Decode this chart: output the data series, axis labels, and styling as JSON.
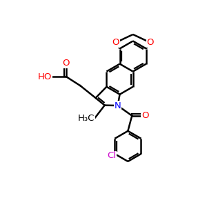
{
  "bg_color": "#ffffff",
  "bond_color": "#000000",
  "lw": 1.8,
  "dofs": 0.09,
  "atom_colors": {
    "O": "#ff0000",
    "N": "#0000ff",
    "Cl": "#cc00cc",
    "C": "#000000"
  },
  "font_size": 9.5,
  "fig_size": [
    3.0,
    3.0
  ],
  "xlim": [
    0,
    10
  ],
  "ylim": [
    0,
    10
  ]
}
